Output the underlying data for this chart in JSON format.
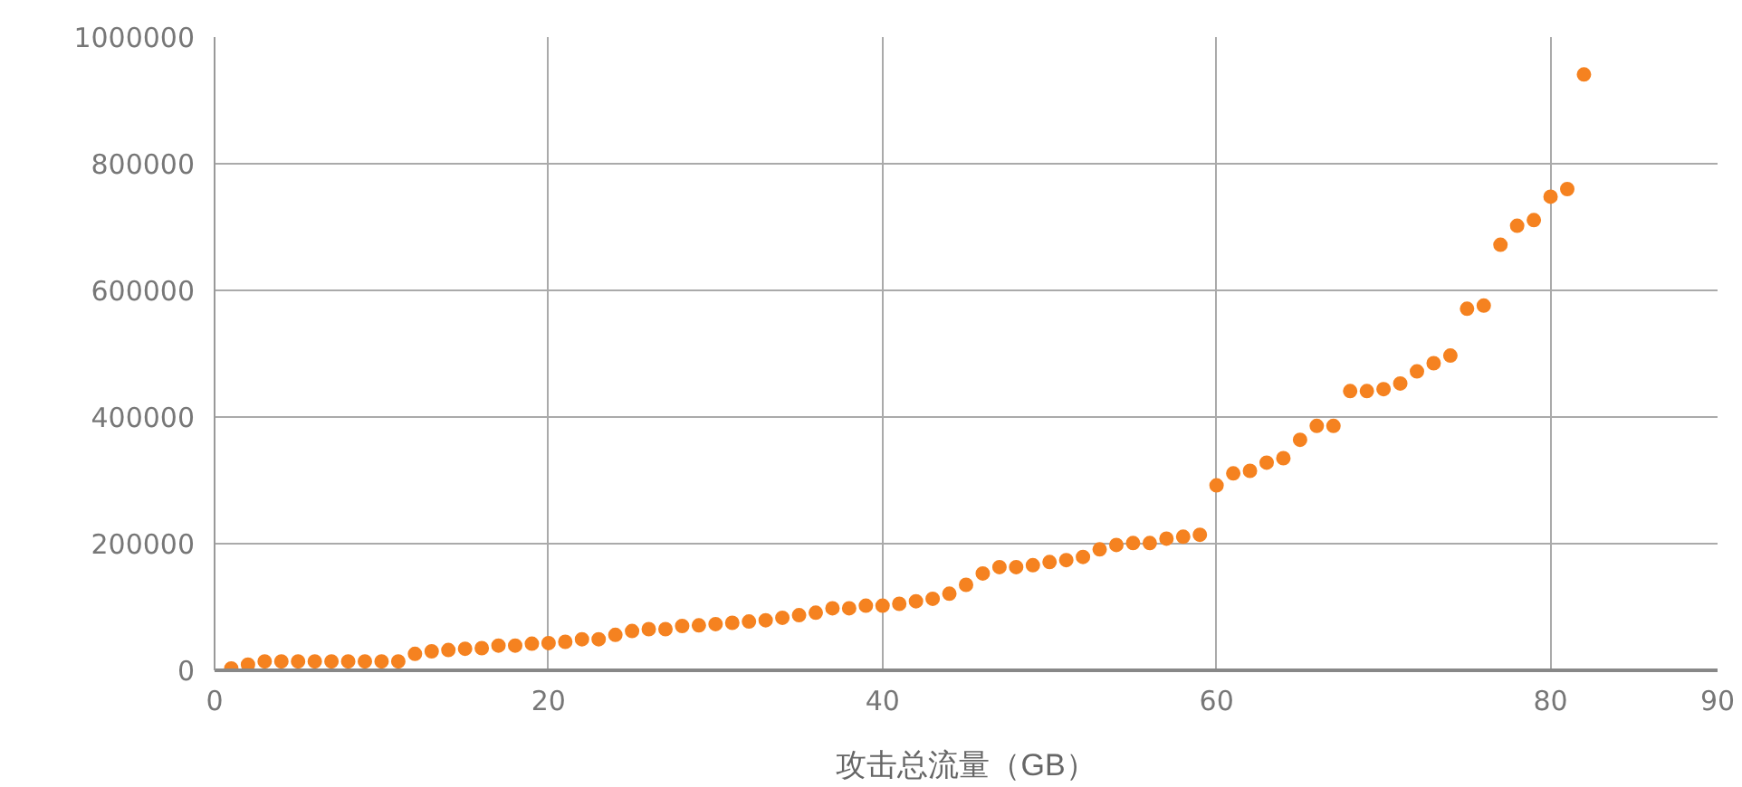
{
  "chart_data": {
    "type": "scatter",
    "xlabel": "攻击总流量（GB）",
    "x": [
      1,
      2,
      3,
      4,
      5,
      6,
      7,
      8,
      9,
      10,
      11,
      12,
      13,
      14,
      15,
      16,
      17,
      18,
      19,
      20,
      21,
      22,
      23,
      24,
      25,
      26,
      27,
      28,
      29,
      30,
      31,
      32,
      33,
      34,
      35,
      36,
      37,
      38,
      39,
      40,
      41,
      42,
      43,
      44,
      45,
      46,
      47,
      48,
      49,
      50,
      51,
      52,
      53,
      54,
      55,
      56,
      57,
      58,
      59,
      60,
      61,
      62,
      63,
      64,
      65,
      66,
      67,
      68,
      69,
      70,
      71,
      72,
      73,
      74,
      75,
      76,
      77,
      78,
      79,
      80,
      81,
      82
    ],
    "series": [
      {
        "color": "#f58220",
        "values": [
          3000,
          9000,
          14000,
          14000,
          14000,
          14000,
          14000,
          14000,
          14000,
          14000,
          14000,
          26000,
          30000,
          32000,
          34000,
          35000,
          39000,
          39000,
          42000,
          43000,
          45000,
          49000,
          49000,
          56000,
          62000,
          65000,
          65000,
          70000,
          71000,
          73000,
          75000,
          77000,
          79000,
          83000,
          87000,
          91000,
          98000,
          98000,
          102000,
          102000,
          105000,
          109000,
          113000,
          121000,
          135000,
          153000,
          163000,
          163000,
          166000,
          171000,
          174000,
          179000,
          191000,
          198000,
          201000,
          201000,
          208000,
          211000,
          214000,
          292000,
          311000,
          315000,
          328000,
          335000,
          364000,
          386000,
          386000,
          441000,
          441000,
          444000,
          453000,
          472000,
          485000,
          497000,
          571000,
          576000,
          672000,
          702000,
          711000,
          748000,
          760000,
          941000
        ]
      }
    ],
    "xlim": [
      0,
      90
    ],
    "xticks": [
      0,
      20,
      40,
      60,
      80,
      90
    ],
    "ylim": [
      0,
      1000000
    ],
    "yticks": [
      0,
      200000,
      400000,
      600000,
      800000,
      1000000
    ],
    "grid": true,
    "marker": "circle"
  }
}
